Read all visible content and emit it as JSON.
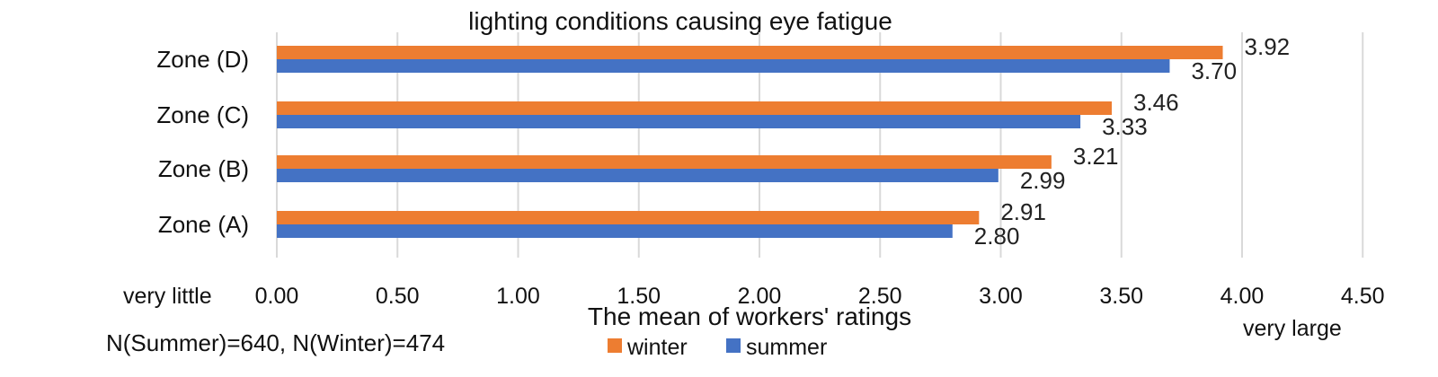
{
  "chart_data": {
    "type": "bar",
    "orientation": "horizontal",
    "title": "lighting conditions causing eye fatigue",
    "categories": [
      "Zone (A)",
      "Zone (B)",
      "Zone (C)",
      "Zone (D)"
    ],
    "series": [
      {
        "name": "winter",
        "color": "#ED7D31",
        "values": [
          2.91,
          3.21,
          3.46,
          3.92
        ],
        "labels": [
          "2.91",
          "3.21",
          "3.46",
          "3.92"
        ]
      },
      {
        "name": "summer",
        "color": "#4472C4",
        "values": [
          2.8,
          2.99,
          3.33,
          3.7
        ],
        "labels": [
          "2.80",
          "2.99",
          "3.33",
          "3.70"
        ]
      }
    ],
    "xlim": [
      0,
      4.5
    ],
    "ticks": [
      0,
      0.5,
      1.0,
      1.5,
      2.0,
      2.5,
      3.0,
      3.5,
      4.0,
      4.5
    ],
    "tick_labels": [
      "0.00",
      "0.50",
      "1.00",
      "1.50",
      "2.00",
      "2.50",
      "3.00",
      "3.50",
      "4.00",
      "4.50"
    ],
    "xlabel": "The mean of workers' ratings",
    "scale_low_label": "very little",
    "scale_high_label": "very large",
    "grid": true,
    "legend_position": "bottom",
    "legend": [
      "winter",
      "summer"
    ],
    "annotation": "N(Summer)=640, N(Winter)=474",
    "gridline_color": "#D9D9D9"
  }
}
